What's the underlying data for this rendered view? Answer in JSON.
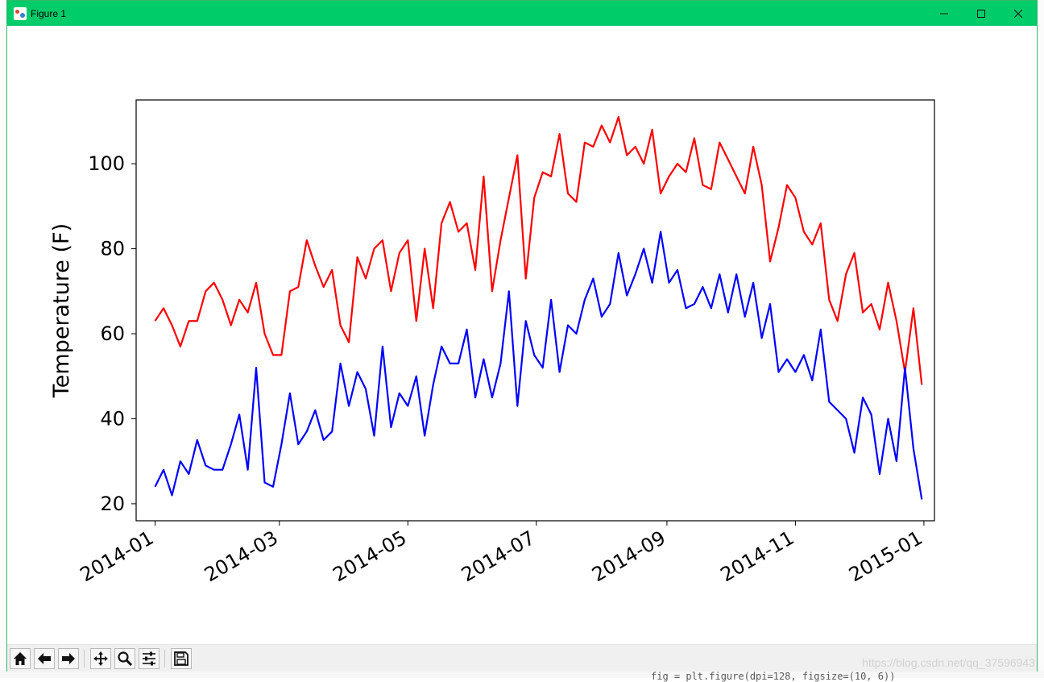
{
  "window": {
    "title": "Figure 1",
    "controls": [
      "minimize",
      "maximize",
      "close"
    ]
  },
  "toolbar": {
    "buttons": [
      {
        "name": "home",
        "icon": "home-icon"
      },
      {
        "name": "back",
        "icon": "arrow-left-icon"
      },
      {
        "name": "forward",
        "icon": "arrow-right-icon"
      },
      {
        "name": "pan",
        "icon": "move-icon"
      },
      {
        "name": "zoom",
        "icon": "magnifier-icon"
      },
      {
        "name": "configure-subplots",
        "icon": "sliders-icon"
      },
      {
        "name": "save",
        "icon": "floppy-icon"
      }
    ],
    "watermark": "https://blog.csdn.net/qq_37596943"
  },
  "background_code": "fig = plt.figure(dpi=128, figsize=(10, 6))",
  "chart_data": {
    "type": "line",
    "ylabel": "Temperature (F)",
    "xlabel": "",
    "title": "",
    "ylim": [
      16,
      115
    ],
    "xlim": [
      "2013-12-23",
      "2015-01-06"
    ],
    "yticks": [
      20,
      40,
      60,
      80,
      100
    ],
    "xticks": [
      "2014-01",
      "2014-03",
      "2014-05",
      "2014-07",
      "2014-09",
      "2014-11",
      "2015-01"
    ],
    "grid": false,
    "series": [
      {
        "color": "#ff0000",
        "points": [
          [
            "2014-01-01",
            63
          ],
          [
            "2014-01-05",
            66
          ],
          [
            "2014-01-09",
            62
          ],
          [
            "2014-01-13",
            57
          ],
          [
            "2014-01-17",
            63
          ],
          [
            "2014-01-21",
            63
          ],
          [
            "2014-01-25",
            70
          ],
          [
            "2014-01-29",
            72
          ],
          [
            "2014-02-02",
            68
          ],
          [
            "2014-02-06",
            62
          ],
          [
            "2014-02-10",
            68
          ],
          [
            "2014-02-14",
            65
          ],
          [
            "2014-02-18",
            72
          ],
          [
            "2014-02-22",
            60
          ],
          [
            "2014-02-26",
            55
          ],
          [
            "2014-03-02",
            55
          ],
          [
            "2014-03-06",
            70
          ],
          [
            "2014-03-10",
            71
          ],
          [
            "2014-03-14",
            82
          ],
          [
            "2014-03-18",
            76
          ],
          [
            "2014-03-22",
            71
          ],
          [
            "2014-03-26",
            75
          ],
          [
            "2014-03-30",
            62
          ],
          [
            "2014-04-03",
            58
          ],
          [
            "2014-04-07",
            78
          ],
          [
            "2014-04-11",
            73
          ],
          [
            "2014-04-15",
            80
          ],
          [
            "2014-04-19",
            82
          ],
          [
            "2014-04-23",
            70
          ],
          [
            "2014-04-27",
            79
          ],
          [
            "2014-05-01",
            82
          ],
          [
            "2014-05-05",
            63
          ],
          [
            "2014-05-09",
            80
          ],
          [
            "2014-05-13",
            66
          ],
          [
            "2014-05-17",
            86
          ],
          [
            "2014-05-21",
            91
          ],
          [
            "2014-05-25",
            84
          ],
          [
            "2014-05-29",
            86
          ],
          [
            "2014-06-02",
            75
          ],
          [
            "2014-06-06",
            97
          ],
          [
            "2014-06-10",
            70
          ],
          [
            "2014-06-14",
            82
          ],
          [
            "2014-06-18",
            92
          ],
          [
            "2014-06-22",
            102
          ],
          [
            "2014-06-26",
            73
          ],
          [
            "2014-06-30",
            92
          ],
          [
            "2014-07-04",
            98
          ],
          [
            "2014-07-08",
            97
          ],
          [
            "2014-07-12",
            107
          ],
          [
            "2014-07-16",
            93
          ],
          [
            "2014-07-20",
            91
          ],
          [
            "2014-07-24",
            105
          ],
          [
            "2014-07-28",
            104
          ],
          [
            "2014-08-01",
            109
          ],
          [
            "2014-08-05",
            105
          ],
          [
            "2014-08-09",
            111
          ],
          [
            "2014-08-13",
            102
          ],
          [
            "2014-08-17",
            104
          ],
          [
            "2014-08-21",
            100
          ],
          [
            "2014-08-25",
            108
          ],
          [
            "2014-08-29",
            93
          ],
          [
            "2014-09-02",
            97
          ],
          [
            "2014-09-06",
            100
          ],
          [
            "2014-09-10",
            98
          ],
          [
            "2014-09-14",
            106
          ],
          [
            "2014-09-18",
            95
          ],
          [
            "2014-09-22",
            94
          ],
          [
            "2014-09-26",
            105
          ],
          [
            "2014-09-30",
            101
          ],
          [
            "2014-10-04",
            97
          ],
          [
            "2014-10-08",
            93
          ],
          [
            "2014-10-12",
            104
          ],
          [
            "2014-10-16",
            95
          ],
          [
            "2014-10-20",
            77
          ],
          [
            "2014-10-24",
            85
          ],
          [
            "2014-10-28",
            95
          ],
          [
            "2014-11-01",
            92
          ],
          [
            "2014-11-05",
            84
          ],
          [
            "2014-11-09",
            81
          ],
          [
            "2014-11-13",
            86
          ],
          [
            "2014-11-17",
            68
          ],
          [
            "2014-11-21",
            63
          ],
          [
            "2014-11-25",
            74
          ],
          [
            "2014-11-29",
            79
          ],
          [
            "2014-12-03",
            65
          ],
          [
            "2014-12-07",
            67
          ],
          [
            "2014-12-11",
            61
          ],
          [
            "2014-12-15",
            72
          ],
          [
            "2014-12-19",
            63
          ],
          [
            "2014-12-23",
            51
          ],
          [
            "2014-12-27",
            66
          ],
          [
            "2014-12-31",
            48
          ]
        ]
      },
      {
        "color": "#0000ff",
        "points": [
          [
            "2014-01-01",
            24
          ],
          [
            "2014-01-05",
            28
          ],
          [
            "2014-01-09",
            22
          ],
          [
            "2014-01-13",
            30
          ],
          [
            "2014-01-17",
            27
          ],
          [
            "2014-01-21",
            35
          ],
          [
            "2014-01-25",
            29
          ],
          [
            "2014-01-29",
            28
          ],
          [
            "2014-02-02",
            28
          ],
          [
            "2014-02-06",
            34
          ],
          [
            "2014-02-10",
            41
          ],
          [
            "2014-02-14",
            28
          ],
          [
            "2014-02-18",
            52
          ],
          [
            "2014-02-22",
            25
          ],
          [
            "2014-02-26",
            24
          ],
          [
            "2014-03-02",
            34
          ],
          [
            "2014-03-06",
            46
          ],
          [
            "2014-03-10",
            34
          ],
          [
            "2014-03-14",
            37
          ],
          [
            "2014-03-18",
            42
          ],
          [
            "2014-03-22",
            35
          ],
          [
            "2014-03-26",
            37
          ],
          [
            "2014-03-30",
            53
          ],
          [
            "2014-04-03",
            43
          ],
          [
            "2014-04-07",
            51
          ],
          [
            "2014-04-11",
            47
          ],
          [
            "2014-04-15",
            36
          ],
          [
            "2014-04-19",
            57
          ],
          [
            "2014-04-23",
            38
          ],
          [
            "2014-04-27",
            46
          ],
          [
            "2014-05-01",
            43
          ],
          [
            "2014-05-05",
            50
          ],
          [
            "2014-05-09",
            36
          ],
          [
            "2014-05-13",
            48
          ],
          [
            "2014-05-17",
            57
          ],
          [
            "2014-05-21",
            53
          ],
          [
            "2014-05-25",
            53
          ],
          [
            "2014-05-29",
            61
          ],
          [
            "2014-06-02",
            45
          ],
          [
            "2014-06-06",
            54
          ],
          [
            "2014-06-10",
            45
          ],
          [
            "2014-06-14",
            53
          ],
          [
            "2014-06-18",
            70
          ],
          [
            "2014-06-22",
            43
          ],
          [
            "2014-06-26",
            63
          ],
          [
            "2014-06-30",
            55
          ],
          [
            "2014-07-04",
            52
          ],
          [
            "2014-07-08",
            68
          ],
          [
            "2014-07-12",
            51
          ],
          [
            "2014-07-16",
            62
          ],
          [
            "2014-07-20",
            60
          ],
          [
            "2014-07-24",
            68
          ],
          [
            "2014-07-28",
            73
          ],
          [
            "2014-08-01",
            64
          ],
          [
            "2014-08-05",
            67
          ],
          [
            "2014-08-09",
            79
          ],
          [
            "2014-08-13",
            69
          ],
          [
            "2014-08-17",
            74
          ],
          [
            "2014-08-21",
            80
          ],
          [
            "2014-08-25",
            72
          ],
          [
            "2014-08-29",
            84
          ],
          [
            "2014-09-02",
            72
          ],
          [
            "2014-09-06",
            75
          ],
          [
            "2014-09-10",
            66
          ],
          [
            "2014-09-14",
            67
          ],
          [
            "2014-09-18",
            71
          ],
          [
            "2014-09-22",
            66
          ],
          [
            "2014-09-26",
            74
          ],
          [
            "2014-09-30",
            65
          ],
          [
            "2014-10-04",
            74
          ],
          [
            "2014-10-08",
            64
          ],
          [
            "2014-10-12",
            72
          ],
          [
            "2014-10-16",
            59
          ],
          [
            "2014-10-20",
            67
          ],
          [
            "2014-10-24",
            51
          ],
          [
            "2014-10-28",
            54
          ],
          [
            "2014-11-01",
            51
          ],
          [
            "2014-11-05",
            55
          ],
          [
            "2014-11-09",
            49
          ],
          [
            "2014-11-13",
            61
          ],
          [
            "2014-11-17",
            44
          ],
          [
            "2014-11-21",
            42
          ],
          [
            "2014-11-25",
            40
          ],
          [
            "2014-11-29",
            32
          ],
          [
            "2014-12-03",
            45
          ],
          [
            "2014-12-07",
            41
          ],
          [
            "2014-12-11",
            27
          ],
          [
            "2014-12-15",
            40
          ],
          [
            "2014-12-19",
            30
          ],
          [
            "2014-12-23",
            52
          ],
          [
            "2014-12-27",
            33
          ],
          [
            "2014-12-31",
            21
          ]
        ]
      }
    ]
  }
}
